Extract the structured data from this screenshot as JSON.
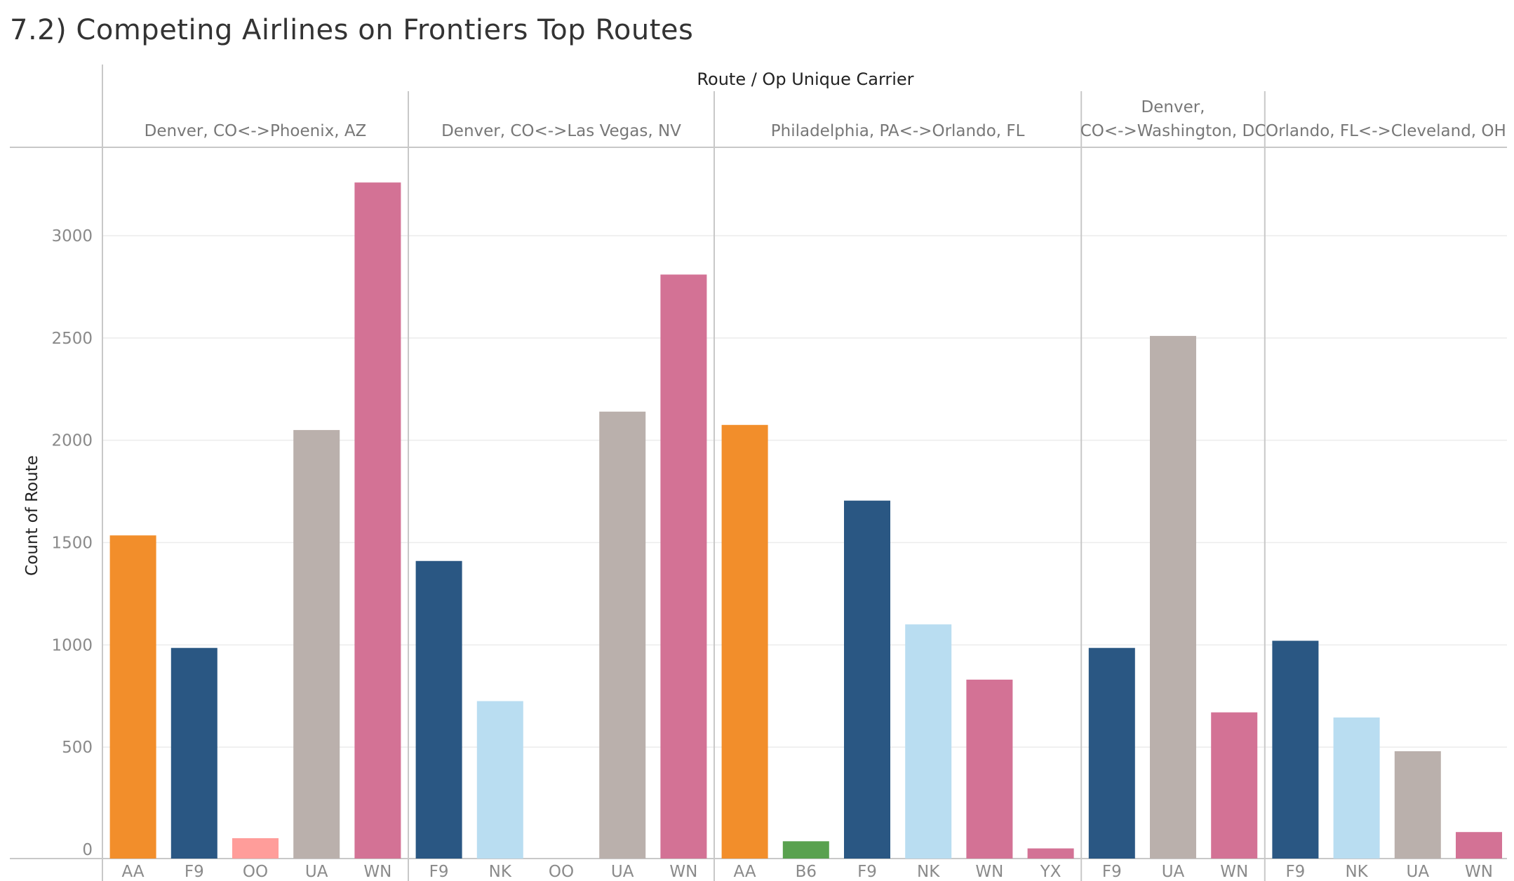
{
  "title": "7.2) Competing Airlines on Frontiers Top Routes",
  "colors": {
    "AA": "#f28e2b",
    "F9": "#2a5783",
    "OO": "#ff9d9a",
    "UA": "#bab0ac",
    "WN": "#d37295",
    "NK": "#b9ddf1",
    "B6": "#59a14f",
    "YX": "#d37295"
  },
  "chart_data": {
    "type": "bar",
    "title": "7.2) Competing Airlines on Frontiers Top Routes",
    "column_header_title": "Route  /  Op Unique Carrier",
    "ylabel": "Count of Route",
    "ylim": [
      0,
      3400
    ],
    "yticks": [
      0,
      500,
      1000,
      1500,
      2000,
      2500,
      3000
    ],
    "grid": true,
    "panels": [
      {
        "route": "Denver, CO<->Phoenix, AZ",
        "route_lines": [
          "Denver, CO<->Phoenix, AZ"
        ],
        "categories": [
          "AA",
          "F9",
          "OO",
          "UA",
          "WN"
        ],
        "values": [
          1535,
          985,
          55,
          2050,
          3260
        ]
      },
      {
        "route": "Denver, CO<->Las Vegas, NV",
        "route_lines": [
          "Denver, CO<->Las Vegas, NV"
        ],
        "categories": [
          "F9",
          "NK",
          "OO",
          "UA",
          "WN"
        ],
        "values": [
          1410,
          725,
          0,
          2140,
          2810
        ]
      },
      {
        "route": "Philadelphia, PA<->Orlando, FL",
        "route_lines": [
          "Philadelphia, PA<->Orlando, FL"
        ],
        "categories": [
          "AA",
          "B6",
          "F9",
          "NK",
          "WN",
          "YX"
        ],
        "values": [
          2075,
          40,
          1705,
          1100,
          830,
          5
        ]
      },
      {
        "route": "Denver, CO<->Washington, DC",
        "route_lines": [
          "Denver,",
          "CO<->Washington, DC"
        ],
        "categories": [
          "F9",
          "UA",
          "WN"
        ],
        "values": [
          985,
          2510,
          670
        ]
      },
      {
        "route": "Orlando, FL<->Cleveland, OH",
        "route_lines": [
          "Orlando, FL<->Cleveland, OH"
        ],
        "categories": [
          "F9",
          "NK",
          "UA",
          "WN"
        ],
        "values": [
          1020,
          645,
          480,
          85
        ]
      }
    ]
  }
}
